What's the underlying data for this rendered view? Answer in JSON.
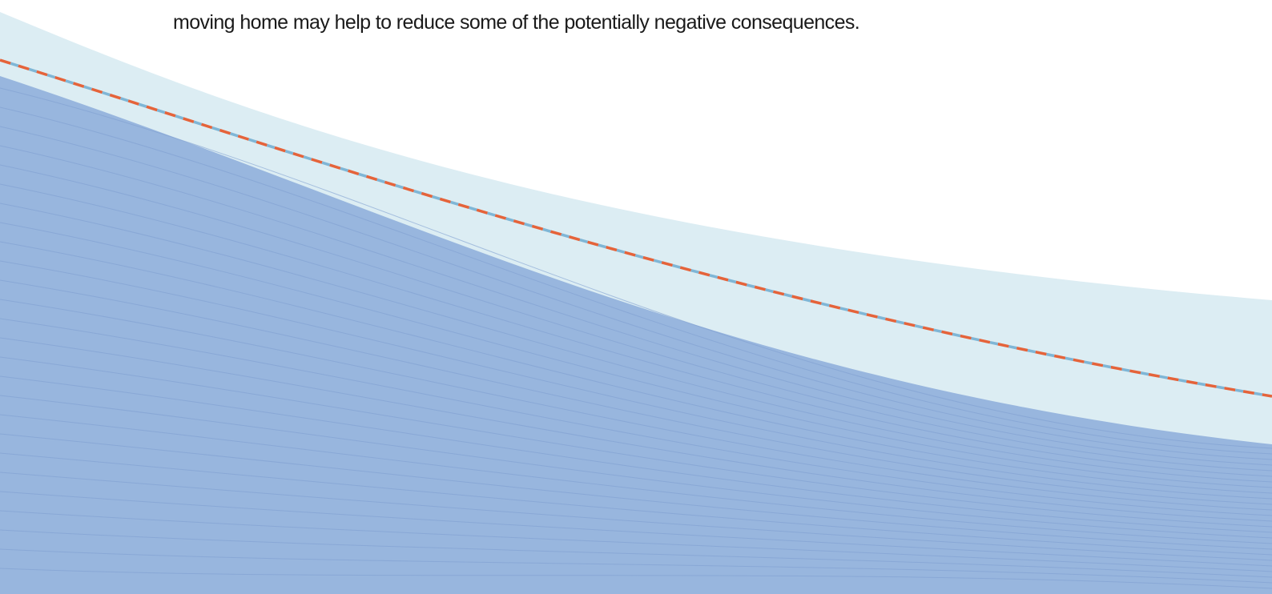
{
  "body": {
    "lines": [
      "moving home may help to reduce some of the potentially negative consequences."
    ]
  }
}
